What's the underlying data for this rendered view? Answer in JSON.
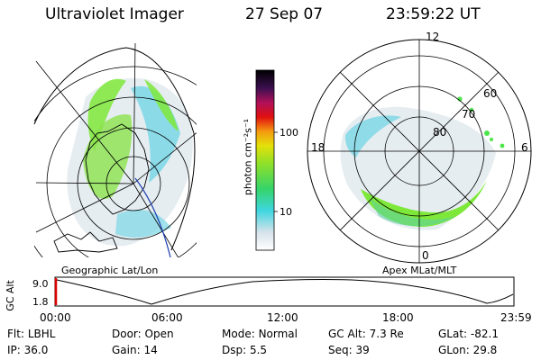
{
  "header": {
    "instrument": "Ultraviolet Imager",
    "date": "27 Sep 07",
    "time": "23:59:22 UT"
  },
  "left_panel": {
    "caption": "Geographic Lat/Lon"
  },
  "right_panel": {
    "caption": "Apex MLat/MLT",
    "lat_labels": [
      "80",
      "70",
      "60"
    ],
    "mlt_labels": {
      "top": "12",
      "left": "18",
      "right": "6",
      "bottom": "0"
    }
  },
  "colorbar": {
    "unit": "photon cm⁻²s⁻¹",
    "ticks": [
      "100",
      "10"
    ],
    "scale": "log"
  },
  "orbit": {
    "axis_label": "GC Alt",
    "y_ticks": [
      "9.0",
      "1.8"
    ],
    "x_ticks": [
      "00:00",
      "06:00",
      "12:00",
      "18:00",
      "23:59"
    ]
  },
  "status": {
    "row1": [
      {
        "label": "Flt:",
        "value": "LBHL"
      },
      {
        "label": "Door:",
        "value": "Open"
      },
      {
        "label": "Mode:",
        "value": "Normal"
      },
      {
        "label": "GC Alt:",
        "value": "7.3 Re"
      },
      {
        "label": "GLat:",
        "value": "-82.1"
      }
    ],
    "row2": [
      {
        "label": "IP:",
        "value": "36.0"
      },
      {
        "label": "Gain:",
        "value": "14"
      },
      {
        "label": "Dsp:",
        "value": "5.5"
      },
      {
        "label": "Seq:",
        "value": "39"
      },
      {
        "label": "GLon:",
        "value": "29.8"
      }
    ]
  },
  "colors": {
    "aurora_green": "#7ee83a",
    "aurora_cyan": "#7ad6e6",
    "haze": "#dde8ee",
    "orbit_marker": "#e00000",
    "track_blue": "#1a3cb0"
  }
}
